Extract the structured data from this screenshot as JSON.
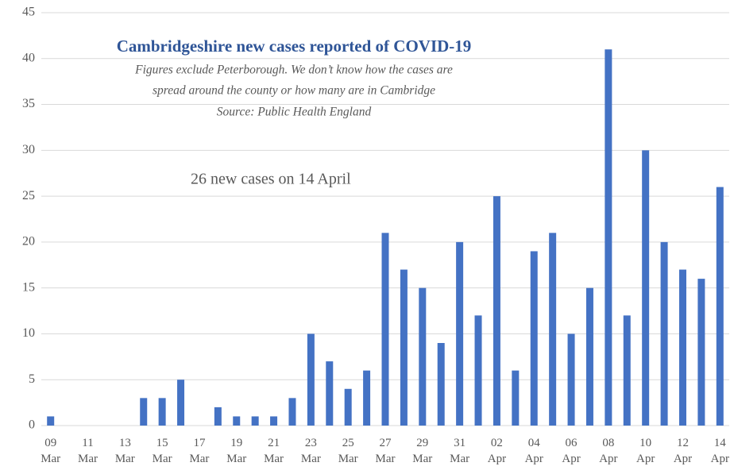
{
  "chart_data": {
    "type": "bar",
    "title": "Cambridgeshire new cases reported of COVID-19",
    "subtitle": [
      "Figures exclude Peterborough.  We don’t know how the cases are",
      "spread around the county or how many are in Cambridge",
      "Source: Public Health England"
    ],
    "annotation": "26 new cases on 14 April",
    "categories": [
      "09 Mar",
      null,
      "11 Mar",
      null,
      "13 Mar",
      null,
      "15 Mar",
      null,
      "17 Mar",
      null,
      "19 Mar",
      null,
      "21 Mar",
      null,
      "23 Mar",
      null,
      "25 Mar",
      null,
      "27 Mar",
      null,
      "29 Mar",
      null,
      "31 Mar",
      null,
      "02 Apr",
      null,
      "04 Apr",
      null,
      "06 Apr",
      null,
      "08 Apr",
      null,
      "10 Apr",
      null,
      "12 Apr",
      null,
      "14 Apr"
    ],
    "values": [
      1,
      0,
      0,
      0,
      0,
      3,
      3,
      5,
      0,
      2,
      1,
      1,
      1,
      3,
      10,
      7,
      4,
      6,
      21,
      17,
      15,
      9,
      20,
      12,
      25,
      6,
      19,
      21,
      10,
      15,
      41,
      12,
      30,
      20,
      17,
      16,
      26
    ],
    "color": "#4472c4",
    "ylim": [
      0,
      45
    ],
    "yticks": [
      0,
      5,
      10,
      15,
      20,
      25,
      30,
      35,
      40,
      45
    ],
    "grid": true
  }
}
